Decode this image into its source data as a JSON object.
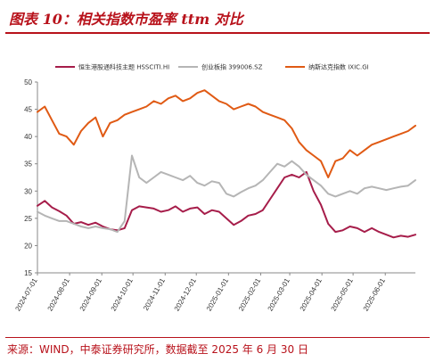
{
  "header": {
    "title": "图表 10：相关指数市盈率 ttm 对比"
  },
  "footer": {
    "source": "来源：WIND，中泰证券研究所，数据截至 2025 年 6 月 30 日"
  },
  "chart_data": {
    "type": "line",
    "title": "",
    "xlabel": "",
    "ylabel": "",
    "ylim": [
      15,
      50
    ],
    "yticks": [
      15,
      20,
      25,
      30,
      35,
      40,
      45,
      50
    ],
    "x_tick_labels": [
      "2024-07-01",
      "2024-08-01",
      "2024-09-01",
      "2024-10-01",
      "2024-11-01",
      "2024-12-01",
      "2025-01-01",
      "2025-02-01",
      "2025-03-01",
      "2025-04-01",
      "2025-05-01",
      "2025-06-01"
    ],
    "legend_position": "top",
    "grid": false,
    "x": [
      "2024-07-01",
      "2024-07-08",
      "2024-07-15",
      "2024-07-22",
      "2024-07-29",
      "2024-08-05",
      "2024-08-12",
      "2024-08-19",
      "2024-08-26",
      "2024-09-02",
      "2024-09-09",
      "2024-09-16",
      "2024-09-23",
      "2024-09-30",
      "2024-10-07",
      "2024-10-14",
      "2024-10-21",
      "2024-10-28",
      "2024-11-04",
      "2024-11-11",
      "2024-11-18",
      "2024-11-25",
      "2024-12-02",
      "2024-12-09",
      "2024-12-16",
      "2024-12-23",
      "2024-12-30",
      "2025-01-06",
      "2025-01-13",
      "2025-01-20",
      "2025-01-27",
      "2025-02-03",
      "2025-02-10",
      "2025-02-17",
      "2025-02-24",
      "2025-03-03",
      "2025-03-10",
      "2025-03-17",
      "2025-03-24",
      "2025-03-31",
      "2025-04-07",
      "2025-04-14",
      "2025-04-21",
      "2025-04-28",
      "2025-05-05",
      "2025-05-12",
      "2025-05-19",
      "2025-05-26",
      "2025-06-02",
      "2025-06-09",
      "2025-06-16",
      "2025-06-23",
      "2025-06-30"
    ],
    "series": [
      {
        "name": "恒生港股通科技主题 HSSCITI.HI",
        "color": "#a61d4a",
        "values": [
          27.3,
          28.2,
          27.0,
          26.3,
          25.5,
          24.0,
          24.3,
          23.8,
          24.2,
          23.5,
          23.0,
          22.8,
          23.2,
          26.5,
          27.2,
          27.0,
          26.8,
          26.2,
          26.5,
          27.2,
          26.2,
          26.8,
          27.0,
          25.8,
          26.5,
          26.2,
          25.0,
          23.8,
          24.5,
          25.5,
          25.8,
          26.5,
          28.5,
          30.5,
          32.5,
          33.0,
          32.5,
          33.5,
          30.0,
          27.5,
          24.0,
          22.5,
          22.8,
          23.5,
          23.2,
          22.5,
          23.2,
          22.5,
          22.0,
          21.5,
          21.8,
          21.6,
          22.0
        ]
      },
      {
        "name": "创业板指 399006.SZ",
        "color": "#b5b5b5",
        "values": [
          26.2,
          25.5,
          25.0,
          24.5,
          24.5,
          24.0,
          23.5,
          23.2,
          23.5,
          23.2,
          23.0,
          22.5,
          24.5,
          36.5,
          32.5,
          31.5,
          32.5,
          33.5,
          33.0,
          32.5,
          32.0,
          32.8,
          31.5,
          31.0,
          31.8,
          31.5,
          29.5,
          29.0,
          29.8,
          30.5,
          31.0,
          32.0,
          33.5,
          35.0,
          34.5,
          35.5,
          34.5,
          33.0,
          32.0,
          31.0,
          29.5,
          29.0,
          29.5,
          30.0,
          29.5,
          30.5,
          30.8,
          30.5,
          30.2,
          30.5,
          30.8,
          31.0,
          32.0
        ]
      },
      {
        "name": "纳斯达克指数 IXIC.GI",
        "color": "#e05a14",
        "values": [
          44.5,
          45.5,
          43.0,
          40.5,
          40.0,
          38.5,
          41.0,
          42.5,
          43.5,
          40.0,
          42.5,
          43.0,
          44.0,
          44.5,
          45.0,
          45.5,
          46.5,
          46.0,
          47.0,
          47.5,
          46.5,
          47.0,
          48.0,
          48.5,
          47.5,
          46.5,
          46.0,
          45.0,
          45.5,
          46.0,
          45.5,
          44.5,
          44.0,
          43.5,
          43.0,
          41.5,
          39.0,
          37.5,
          36.5,
          35.5,
          32.5,
          35.5,
          36.0,
          37.5,
          36.5,
          37.5,
          38.5,
          39.0,
          39.5,
          40.0,
          40.5,
          41.0,
          42.0
        ]
      }
    ]
  }
}
